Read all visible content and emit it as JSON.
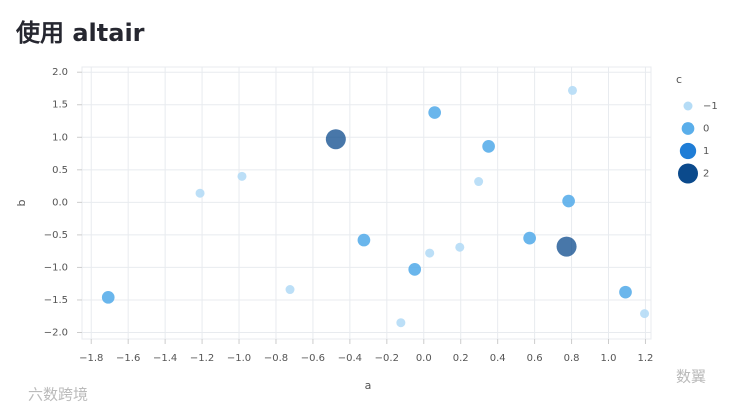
{
  "chart_data": {
    "type": "scatter",
    "title": "使用 altair",
    "x_label": "a",
    "y_label": "b",
    "x": [
      -1.708,
      -1.211,
      -0.984,
      -0.724,
      -0.476,
      -0.324,
      -0.124,
      -0.049,
      0.032,
      0.195,
      0.059,
      0.297,
      0.351,
      0.573,
      0.784,
      0.773,
      0.805,
      1.092,
      1.195
    ],
    "y": [
      -1.46,
      0.14,
      0.4,
      -1.34,
      0.97,
      -0.58,
      -1.85,
      -1.03,
      -0.78,
      -0.69,
      1.38,
      0.32,
      0.86,
      -0.55,
      0.02,
      -0.68,
      1.72,
      -1.38,
      -1.71
    ],
    "c": [
      0,
      -1,
      -1,
      -1,
      2,
      0,
      -1,
      0,
      -1,
      -1,
      0,
      -1,
      0,
      0,
      0,
      2,
      -1,
      0,
      -1
    ],
    "xlim": [
      -1.85,
      1.23
    ],
    "ylim": [
      -2.1,
      2.08
    ],
    "xticks": [
      {
        "value": -1.8,
        "label": "−1.8"
      },
      {
        "value": -1.6,
        "label": "−1.6"
      },
      {
        "value": -1.4,
        "label": "−1.4"
      },
      {
        "value": -1.2,
        "label": "−1.2"
      },
      {
        "value": -1.0,
        "label": "−1.0"
      },
      {
        "value": -0.8,
        "label": "−0.8"
      },
      {
        "value": -0.6,
        "label": "−0.6"
      },
      {
        "value": -0.4,
        "label": "−0.4"
      },
      {
        "value": -0.2,
        "label": "−0.2"
      },
      {
        "value": 0,
        "label": "0.0"
      },
      0.2,
      0.4,
      0.6,
      0.8,
      {
        "value": 1,
        "label": "1.0"
      },
      1.2
    ],
    "yticks": [
      {
        "value": 2,
        "label": "2.0"
      },
      1.5,
      {
        "value": 1,
        "label": "1.0"
      },
      0.5,
      {
        "value": 0,
        "label": "0.0"
      },
      {
        "value": -0.5,
        "label": "−0.5"
      },
      {
        "value": -1,
        "label": "−1.0"
      },
      {
        "value": -1.5,
        "label": "−1.5"
      },
      {
        "value": -2,
        "label": "−2.0"
      }
    ],
    "grid": true,
    "legend": {
      "title": "c",
      "position": "right",
      "entries": [
        {
          "value": -1,
          "label": "−1",
          "color": "#b5dcf6"
        },
        {
          "value": 0,
          "label": "0",
          "color": "#5aaeea"
        },
        {
          "value": 1,
          "label": "1",
          "color": "#1f7dd6"
        },
        {
          "value": 2,
          "label": "2",
          "color": "#0b4a8c"
        }
      ]
    }
  },
  "watermarks": [
    "六数跨境",
    "数翼"
  ]
}
